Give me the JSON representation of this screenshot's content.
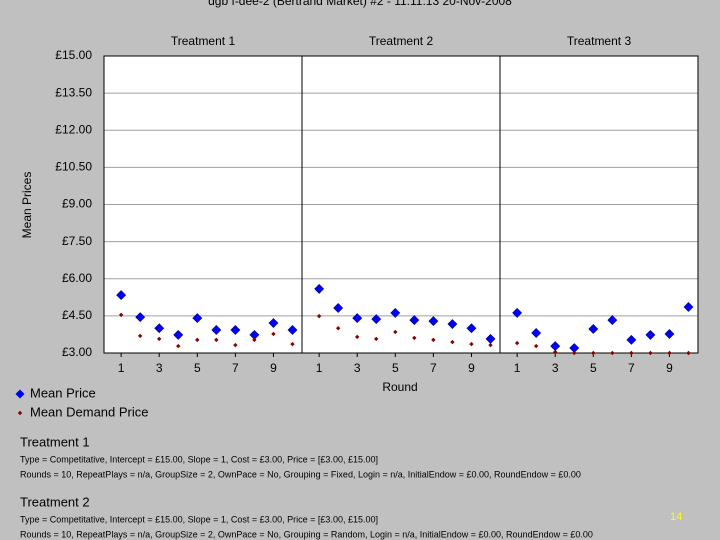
{
  "chart_data": {
    "type": "scatter",
    "title": "dgb f-dee-2 (Bertrand Market) #2 - 11:11:13 20-Nov-2008",
    "ylabel": "Mean Prices",
    "xlabel": "Round",
    "panels": [
      "Treatment 1",
      "Treatment 2",
      "Treatment 3"
    ],
    "x": [
      1,
      2,
      3,
      4,
      5,
      6,
      7,
      8,
      9,
      10
    ],
    "xlim": [
      0.1,
      10.5
    ],
    "xticks": [
      1,
      3,
      5,
      7,
      9
    ],
    "ylim": [
      3,
      15
    ],
    "yticks": [
      {
        "value": 3,
        "label": "£3.00"
      },
      {
        "value": 4.5,
        "label": "£4.50"
      },
      {
        "value": 6,
        "label": "£6.00"
      },
      {
        "value": 7.5,
        "label": "£7.50"
      },
      {
        "value": 9,
        "label": "£9.00"
      },
      {
        "value": 10.5,
        "label": "£10.50"
      },
      {
        "value": 12,
        "label": "£12.00"
      },
      {
        "value": 13.5,
        "label": "£13.50"
      },
      {
        "value": 15,
        "label": "£15.00"
      }
    ],
    "grid": true,
    "series": [
      {
        "name": "Mean Price",
        "color": "#0000ff",
        "values": [
          [
            5.34,
            4.45,
            4.0,
            3.73,
            4.41,
            3.93,
            3.93,
            3.73,
            4.21,
            3.93
          ],
          [
            5.59,
            4.82,
            4.41,
            4.37,
            4.62,
            4.33,
            4.29,
            4.17,
            4.0,
            3.57
          ],
          [
            4.62,
            3.81,
            3.28,
            3.2,
            3.97,
            4.33,
            3.53,
            3.73,
            3.77,
            4.86
          ]
        ]
      },
      {
        "name": "Mean Demand Price",
        "color": "#8b0000",
        "values": [
          [
            4.54,
            3.69,
            3.57,
            3.28,
            3.53,
            3.53,
            3.32,
            3.53,
            3.77,
            3.36
          ],
          [
            4.49,
            4.0,
            3.65,
            3.57,
            3.85,
            3.61,
            3.53,
            3.44,
            3.36,
            3.32
          ],
          [
            3.4,
            3.28,
            3.04,
            3.0,
            3.0,
            3.0,
            3.0,
            3.0,
            3.0,
            3.0
          ]
        ]
      }
    ]
  },
  "notes": [
    {
      "heading": "Treatment 1",
      "lines": [
        "Type = Competitative, Intercept = £15.00, Slope = 1, Cost = £3.00, Price = [£3.00, £15.00]",
        "Rounds = 10, RepeatPlays = n/a, GroupSize = 2, OwnPace = No, Grouping = Fixed, Login = n/a, InitialEndow = £0.00, RoundEndow = £0.00"
      ]
    },
    {
      "heading": "Treatment 2",
      "lines": [
        "Type = Competitative, Intercept = £15.00, Slope = 1, Cost = £3.00, Price = [£3.00, £15.00]",
        "Rounds = 10, RepeatPlays = n/a, GroupSize = 2, OwnPace = No, Grouping = Random, Login = n/a, InitialEndow = £0.00, RoundEndow = £0.00"
      ]
    }
  ],
  "page_number": "14"
}
